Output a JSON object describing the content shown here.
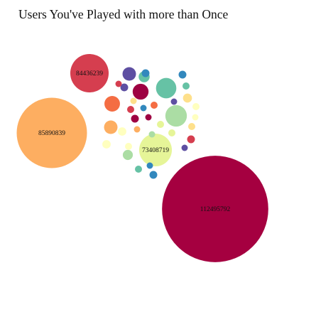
{
  "page": {
    "title": "Users You've Played with more than Once"
  },
  "chart_data": {
    "type": "bubble",
    "title": "Users You've Played with more than Once",
    "labels": [
      "112495792",
      "85890839",
      "84436239",
      "73408719"
    ],
    "bubbles": [
      {
        "label": "112495792",
        "size": 5600,
        "color": "#a50040"
      },
      {
        "label": "85890839",
        "size": 2450,
        "color": "#fdae61"
      },
      {
        "label": "84436239",
        "size": 730,
        "color": "#d53e4f"
      },
      {
        "label": "73408719",
        "size": 530,
        "color": "#e6f598"
      },
      {
        "label": "",
        "size": 205,
        "color": "#66c2a5"
      },
      {
        "label": "",
        "size": 230,
        "color": "#abdda4"
      },
      {
        "label": "",
        "size": 120,
        "color": "#f46d43"
      },
      {
        "label": "",
        "size": 125,
        "color": "#9e0142"
      },
      {
        "label": "",
        "size": 90,
        "color": "#5e4fa2"
      },
      {
        "label": "",
        "size": 90,
        "color": "#fdae61"
      },
      {
        "label": "",
        "size": 50,
        "color": "#abdda4"
      },
      {
        "label": "",
        "size": 60,
        "color": "#66c2a5"
      },
      {
        "label": "",
        "size": 35,
        "color": "#ffffbf"
      },
      {
        "label": "",
        "size": 35,
        "color": "#ffffbf"
      },
      {
        "label": "",
        "size": 40,
        "color": "#fee08b"
      },
      {
        "label": "",
        "size": 30,
        "color": "#3288bd"
      },
      {
        "label": "",
        "size": 30,
        "color": "#3288bd"
      },
      {
        "label": "",
        "size": 30,
        "color": "#3288bd"
      },
      {
        "label": "",
        "size": 25,
        "color": "#66c2a5"
      },
      {
        "label": "",
        "size": 25,
        "color": "#66c2a5"
      },
      {
        "label": "",
        "size": 30,
        "color": "#9e0142"
      },
      {
        "label": "",
        "size": 30,
        "color": "#d53e4f"
      },
      {
        "label": "",
        "size": 25,
        "color": "#d53e4f"
      },
      {
        "label": "",
        "size": 30,
        "color": "#5e4fa2"
      },
      {
        "label": "",
        "size": 25,
        "color": "#e6f598"
      },
      {
        "label": "",
        "size": 25,
        "color": "#fee08b"
      },
      {
        "label": "",
        "size": 25,
        "color": "#ffffbf"
      },
      {
        "label": "",
        "size": 25,
        "color": "#ffffbf"
      },
      {
        "label": "",
        "size": 20,
        "color": "#3288bd"
      },
      {
        "label": "",
        "size": 20,
        "color": "#5e4fa2"
      },
      {
        "label": "",
        "size": 20,
        "color": "#3288bd"
      },
      {
        "label": "",
        "size": 20,
        "color": "#9e0142"
      },
      {
        "label": "",
        "size": 25,
        "color": "#f46d43"
      },
      {
        "label": "",
        "size": 20,
        "color": "#d53e4f"
      },
      {
        "label": "",
        "size": 20,
        "color": "#fdae61"
      },
      {
        "label": "",
        "size": 20,
        "color": "#abdda4"
      },
      {
        "label": "",
        "size": 25,
        "color": "#e6f598"
      },
      {
        "label": "",
        "size": 20,
        "color": "#ffffbf"
      },
      {
        "label": "",
        "size": 20,
        "color": "#fee08b"
      },
      {
        "label": "",
        "size": 20,
        "color": "#5e4fa2"
      }
    ]
  }
}
